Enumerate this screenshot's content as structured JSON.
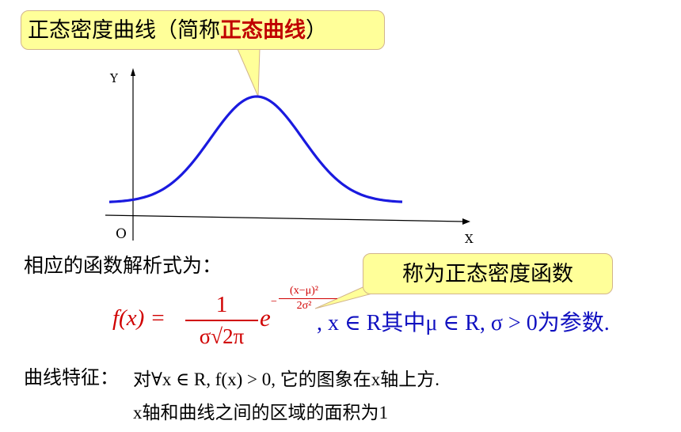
{
  "title_callout": {
    "text_plain": "正态密度曲线（简称",
    "text_highlight": "正态曲线",
    "text_close": "）",
    "highlight_color": "#c00000"
  },
  "graph": {
    "y_label": "Y",
    "x_label": "X",
    "origin_label": "O",
    "curve_color": "#1a1adf"
  },
  "intro_text": "相应的函数解析式为：",
  "callout_right": {
    "text": "称为正态密度函数"
  },
  "formula": {
    "lhs": "f(x) = ",
    "numerator": "1",
    "denominator": "σ√2π",
    "base": "e",
    "exponent_minus": "−",
    "exponent_numerator": "(x−μ)²",
    "exponent_denominator": "2σ²",
    "condition": ", x ∈ R其中μ ∈ R, σ > 0为参数.",
    "formula_color": "#d00000",
    "condition_color": "#1010c0"
  },
  "features": {
    "label": "曲线特征：",
    "item1": "对∀x ∈ R, f(x) > 0, 它的图象在x轴上方.",
    "item2": "x轴和曲线之间的区域的面积为1"
  }
}
